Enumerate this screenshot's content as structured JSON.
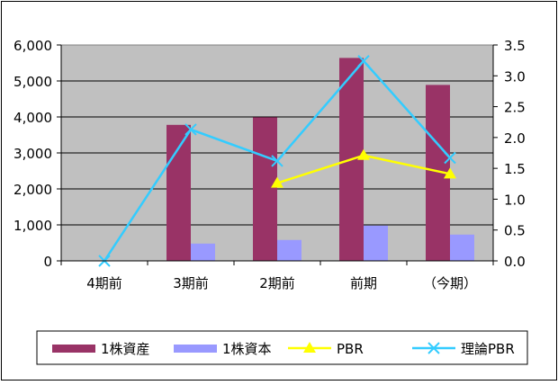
{
  "chart_data": {
    "type": "bar",
    "categories": [
      "4期前",
      "3期前",
      "2期前",
      "前期",
      "（今期）"
    ],
    "series": [
      {
        "name": "1株資産",
        "kind": "bar",
        "axis": "left",
        "color": "#993366",
        "values": [
          0,
          3780,
          3990,
          5640,
          4890
        ]
      },
      {
        "name": "1株資本",
        "kind": "bar",
        "axis": "left",
        "color": "#9999ff",
        "values": [
          0,
          480,
          580,
          980,
          730
        ]
      },
      {
        "name": "PBR",
        "kind": "line",
        "axis": "right",
        "color": "#ffff00",
        "marker": "triangle",
        "values": [
          null,
          null,
          1.26,
          1.71,
          1.41
        ]
      },
      {
        "name": "理論PBR",
        "kind": "line",
        "axis": "right",
        "color": "#33ccff",
        "marker": "x",
        "values": [
          0.0,
          2.13,
          1.62,
          3.24,
          1.67
        ]
      }
    ],
    "y_left": {
      "min": 0,
      "max": 6000,
      "ticks": [
        0,
        1000,
        2000,
        3000,
        4000,
        5000,
        6000
      ],
      "tick_labels": [
        "0",
        "1,000",
        "2,000",
        "3,000",
        "4,000",
        "5,000",
        "6,000"
      ]
    },
    "y_right": {
      "min": 0,
      "max": 3.5,
      "ticks": [
        0,
        0.5,
        1.0,
        1.5,
        2.0,
        2.5,
        3.0,
        3.5
      ],
      "tick_labels": [
        "0.0",
        "0.5",
        "1.0",
        "1.5",
        "2.0",
        "2.5",
        "3.0",
        "3.5"
      ]
    },
    "title": "",
    "xlabel": "",
    "ylabel": "",
    "grid": true,
    "legend_position": "bottom",
    "plot_background": "#c0c0c0"
  }
}
